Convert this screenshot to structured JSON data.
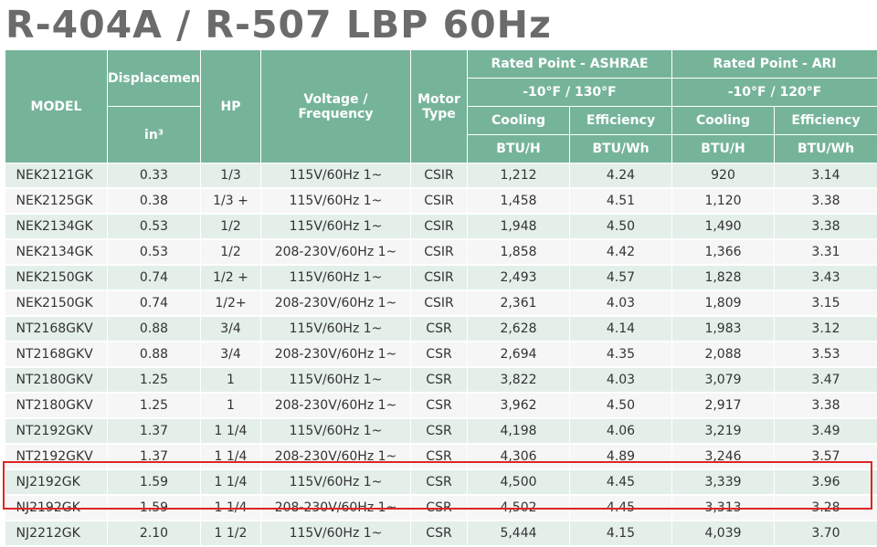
{
  "title": "R-404A / R-507 LBP 60Hz",
  "header": {
    "model": "MODEL",
    "displacement": "Displacement",
    "displacement_unit": "in³",
    "hp": "HP",
    "voltage": "Voltage / Frequency",
    "motor": "Motor Type",
    "ashrae_group": "Rated Point - ASHRAE",
    "ashrae_cond": "-10°F / 130°F",
    "ari_group": "Rated Point - ARI",
    "ari_cond": "-10°F / 120°F",
    "cooling": "Cooling",
    "efficiency": "Efficiency",
    "btuh": "BTU/H",
    "btuwh": "BTU/Wh"
  },
  "rows": [
    [
      "NEK2121GK",
      "0.33",
      "1/3",
      "115V/60Hz 1~",
      "CSIR",
      "1,212",
      "4.24",
      "920",
      "3.14"
    ],
    [
      "NEK2125GK",
      "0.38",
      "1/3 +",
      "115V/60Hz 1~",
      "CSIR",
      "1,458",
      "4.51",
      "1,120",
      "3.38"
    ],
    [
      "NEK2134GK",
      "0.53",
      "1/2",
      "115V/60Hz 1~",
      "CSIR",
      "1,948",
      "4.50",
      "1,490",
      "3.38"
    ],
    [
      "NEK2134GK",
      "0.53",
      "1/2",
      "208-230V/60Hz 1~",
      "CSIR",
      "1,858",
      "4.42",
      "1,366",
      "3.31"
    ],
    [
      "NEK2150GK",
      "0.74",
      "1/2 +",
      "115V/60Hz 1~",
      "CSIR",
      "2,493",
      "4.57",
      "1,828",
      "3.43"
    ],
    [
      "NEK2150GK",
      "0.74",
      "1/2+",
      "208-230V/60Hz 1~",
      "CSIR",
      "2,361",
      "4.03",
      "1,809",
      "3.15"
    ],
    [
      "NT2168GKV",
      "0.88",
      "3/4",
      "115V/60Hz 1~",
      "CSR",
      "2,628",
      "4.14",
      "1,983",
      "3.12"
    ],
    [
      "NT2168GKV",
      "0.88",
      "3/4",
      "208-230V/60Hz 1~",
      "CSR",
      "2,694",
      "4.35",
      "2,088",
      "3.53"
    ],
    [
      "NT2180GKV",
      "1.25",
      "1",
      "115V/60Hz 1~",
      "CSR",
      "3,822",
      "4.03",
      "3,079",
      "3.47"
    ],
    [
      "NT2180GKV",
      "1.25",
      "1",
      "208-230V/60Hz 1~",
      "CSR",
      "3,962",
      "4.50",
      "2,917",
      "3.38"
    ],
    [
      "NT2192GKV",
      "1.37",
      "1 1/4",
      "115V/60Hz 1~",
      "CSR",
      "4,198",
      "4.06",
      "3,219",
      "3.49"
    ],
    [
      "NT2192GKV",
      "1.37",
      "1 1/4",
      "208-230V/60Hz 1~",
      "CSR",
      "4,306",
      "4.89",
      "3,246",
      "3.57"
    ],
    [
      "NJ2192GK",
      "1.59",
      "1 1/4",
      "115V/60Hz 1~",
      "CSR",
      "4,500",
      "4.45",
      "3,339",
      "3.96"
    ],
    [
      "NJ2192GK",
      "1.59",
      "1 1/4",
      "208-230V/60Hz 1~",
      "CSR",
      "4,502",
      "4.45",
      "3,313",
      "3.28"
    ],
    [
      "NJ2212GK",
      "2.10",
      "1 1/2",
      "115V/60Hz 1~",
      "CSR",
      "5,444",
      "4.15",
      "4,039",
      "3.70"
    ]
  ],
  "highlight_color": "#e02424"
}
